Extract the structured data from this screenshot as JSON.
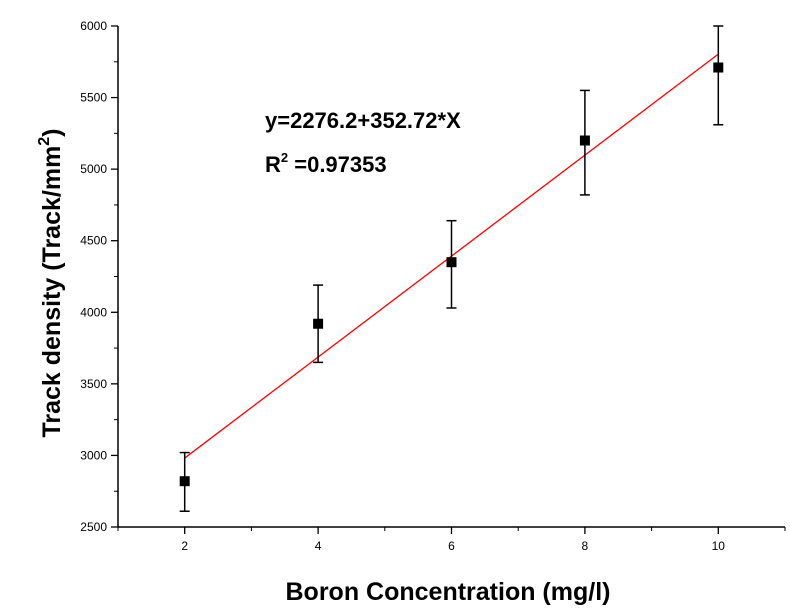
{
  "chart_data": {
    "type": "scatter",
    "xlabel": "Boron Concentration (mg/l)",
    "ylabel": "Track density (Track/mm",
    "ylabel_sup": "2",
    "ylabel_end": ")",
    "xlim": [
      1,
      11
    ],
    "ylim": [
      2500,
      6000
    ],
    "x_ticks": [
      2,
      4,
      6,
      8,
      10
    ],
    "x_tick_labels": [
      "2",
      "4",
      "6",
      "8",
      "10"
    ],
    "y_ticks": [
      2500,
      3000,
      3500,
      4000,
      4500,
      5000,
      5500,
      6000
    ],
    "y_tick_labels": [
      "2500",
      "3000",
      "3500",
      "4000",
      "4500",
      "5000",
      "5500",
      "6000"
    ],
    "series": [
      {
        "marker": "square",
        "color": "#000000",
        "points": [
          {
            "x": 2,
            "y": 2820,
            "err_low": 2610,
            "err_high": 3020
          },
          {
            "x": 4,
            "y": 3920,
            "err_low": 3650,
            "err_high": 4190
          },
          {
            "x": 6,
            "y": 4350,
            "err_low": 4030,
            "err_high": 4640
          },
          {
            "x": 8,
            "y": 5200,
            "err_low": 4820,
            "err_high": 5550
          },
          {
            "x": 10,
            "y": 5710,
            "err_low": 5310,
            "err_high": 6000
          }
        ]
      }
    ],
    "fit": {
      "intercept": 2276.2,
      "slope": 352.72,
      "x_range": [
        2,
        10
      ],
      "color": "#ff0000"
    },
    "annotations": {
      "equation": "y=2276.2+352.72*X",
      "r2_prefix": "R",
      "r2_sup": "2",
      "r2_value": " =0.97353"
    },
    "grid": false
  }
}
